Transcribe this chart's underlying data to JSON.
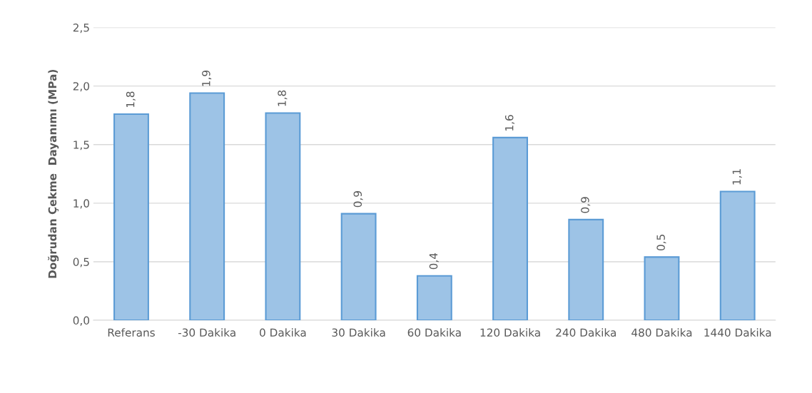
{
  "chart_data": {
    "type": "bar",
    "ylabel": "Doğrudan Çekme  Dayanımı (MPa)",
    "categories": [
      "Referans",
      "-30 Dakika",
      "0 Dakika",
      "30 Dakika",
      "60 Dakika",
      "120 Dakika",
      "240 Dakika",
      "480 Dakika",
      "1440 Dakika"
    ],
    "values": [
      1.76,
      1.94,
      1.77,
      0.91,
      0.38,
      1.56,
      0.86,
      0.54,
      1.1
    ],
    "value_labels": [
      "1,8",
      "1,9",
      "1,8",
      "0,9",
      "0,4",
      "1,6",
      "0,9",
      "0,5",
      "1,1"
    ],
    "color": "#9dc3e6",
    "ylim": [
      0,
      2.5
    ],
    "yticks": [
      {
        "value": 0,
        "label": "0,0"
      },
      {
        "value": 0.5,
        "label": "0,5"
      },
      {
        "value": 1.0,
        "label": "1,0"
      },
      {
        "value": 1.5,
        "label": "1,5"
      },
      {
        "value": 2.0,
        "label": "2,0"
      },
      {
        "value": 2.5,
        "label": "2,5"
      }
    ],
    "grid": "y",
    "legend": false
  }
}
